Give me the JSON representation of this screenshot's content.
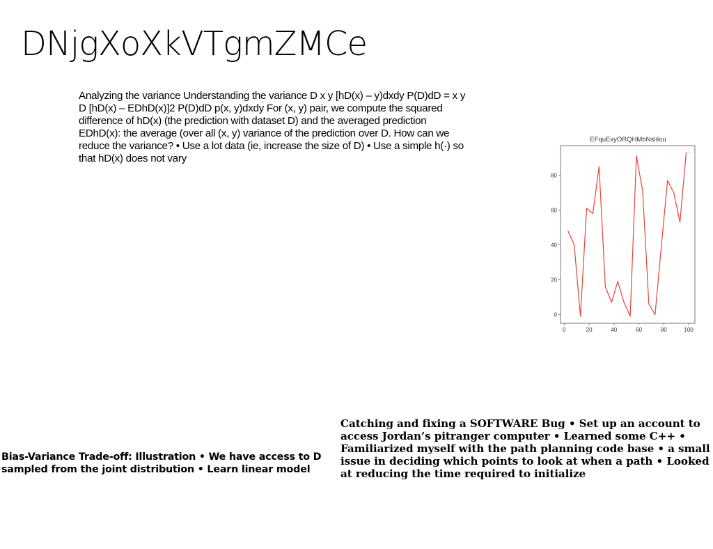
{
  "slide": {
    "title": "DNjgXoXkVTgmZMCe",
    "body": "Analyzing the variance Understanding the variance  D  x  y [hD(x) – y)dxdy P(D)dD =  x  y  D [hD(x) – EDhD(x)]2 P(D)dD  p(x, y)dxdy For (x, y) pair, we compute the squared difference of hD(x) (the prediction with dataset D) and the averaged prediction EDhD(x): the average (over all (x, y)  variance of the prediction over D. How can we reduce the variance? • Use a lot data (ie, increase the size of D) • Use a simple h(·) so that hD(x) does not vary",
    "caption_left": "Bias-Variance Trade-off: Illustration • We have access to D sampled from the joint distribution • Learn linear model",
    "caption_right": "Catching and fixing a SOFTWARE Bug • Set up an account to access Jordan’s pitranger computer • Learned some C++ • Familiarized myself with the path planning code base • a small issue in deciding which points to look at when a path • Looked at reducing the time required to initialize"
  },
  "chart_data": {
    "type": "line",
    "title": "EFquExyORQHMbNsIilou",
    "xlabel": "",
    "ylabel": "",
    "xlim": [
      -3,
      105
    ],
    "ylim": [
      -5,
      97
    ],
    "xticks": [
      0,
      20,
      40,
      60,
      80,
      100
    ],
    "yticks": [
      0,
      20,
      40,
      60,
      80
    ],
    "grid": false,
    "series": [
      {
        "color": "#e8413a",
        "x": [
          3,
          8,
          13,
          18,
          23,
          28,
          33,
          38,
          43,
          48,
          53,
          58,
          63,
          68,
          73,
          78,
          83,
          88,
          93,
          98
        ],
        "values": [
          48,
          40,
          -1,
          61,
          58,
          85,
          16,
          7,
          19,
          7,
          -1,
          91,
          71,
          6,
          0,
          39,
          77,
          70,
          53,
          93
        ]
      }
    ]
  }
}
